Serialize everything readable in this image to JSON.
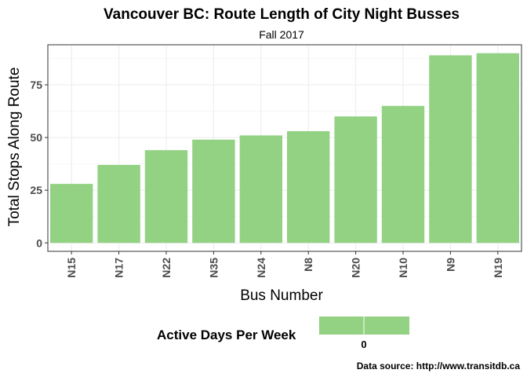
{
  "chart_data": {
    "type": "bar",
    "title": "Vancouver BC: Route Length of City Night Busses",
    "subtitle": "Fall 2017",
    "xlabel": "Bus Number",
    "ylabel": "Total Stops Along Route",
    "categories": [
      "N15",
      "N17",
      "N22",
      "N35",
      "N24",
      "N8",
      "N20",
      "N10",
      "N9",
      "N19"
    ],
    "values": [
      28,
      37,
      44,
      49,
      51,
      53,
      60,
      65,
      89,
      90
    ],
    "ylim": [
      -4,
      94
    ],
    "yticks": [
      0,
      25,
      50,
      75
    ],
    "grid": true,
    "bar_color": "#93d183",
    "legend": {
      "title": "Active Days Per Week",
      "labels": [
        "0"
      ],
      "position": "bottom"
    },
    "caption": "Data source: http://www.transitdb.ca"
  }
}
